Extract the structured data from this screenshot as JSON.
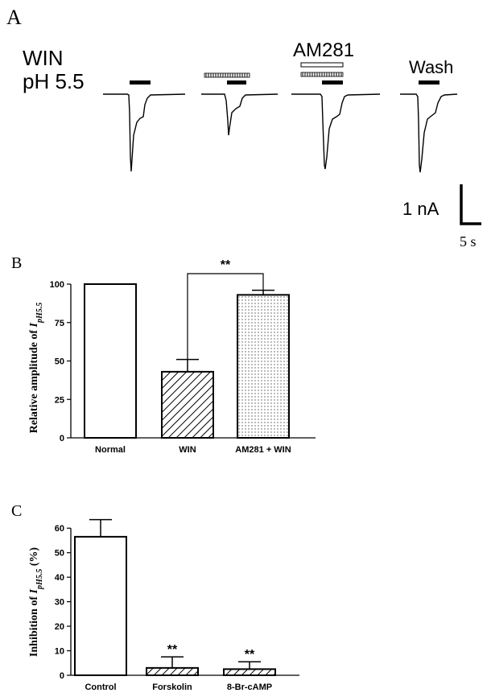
{
  "panel_a": {
    "letter": "A",
    "label_line1": "WIN",
    "label_line2": "pH 5.5",
    "am281_label": "AM281",
    "wash_label": "Wash",
    "scale_current": "1 nA",
    "scale_time": "5 s"
  },
  "chart_data": [
    {
      "panel": "B",
      "type": "bar",
      "title": "",
      "categories": [
        "Normal",
        "WIN",
        "AM281 + WIN"
      ],
      "values": [
        100,
        43,
        93
      ],
      "errors": [
        0,
        8,
        3
      ],
      "fills": [
        "white",
        "diagonal-hatch",
        "dots"
      ],
      "ylabel_prefix": "Relative amplitude of ",
      "ylabel_italic": "I",
      "ylabel_sub": "pH5.5",
      "ylim": [
        0,
        100
      ],
      "yticks": [
        0,
        25,
        50,
        75,
        100
      ],
      "significance": {
        "from": "WIN",
        "to": "AM281 + WIN",
        "label": "**"
      },
      "grid": false
    },
    {
      "panel": "C",
      "type": "bar",
      "title": "",
      "categories": [
        "Control",
        "Forskolin",
        "8-Br-cAMP"
      ],
      "values": [
        56.5,
        3,
        2.5
      ],
      "errors": [
        7,
        4.5,
        3
      ],
      "fills": [
        "white",
        "diagonal-hatch",
        "diagonal-hatch"
      ],
      "ylabel_prefix": "Inhibition of ",
      "ylabel_italic": "I",
      "ylabel_sub": "pH5.5",
      "ylabel_suffix": " (%)",
      "ylim": [
        0,
        65
      ],
      "yticks": [
        0,
        10,
        20,
        30,
        40,
        50,
        60
      ],
      "significance_marks": [
        "",
        "**",
        "**"
      ],
      "grid": false
    }
  ]
}
